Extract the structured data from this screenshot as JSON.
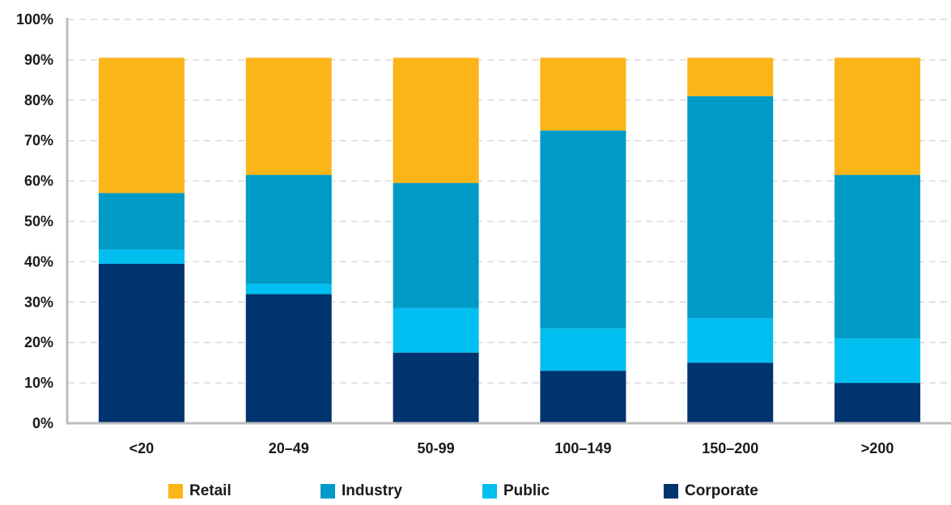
{
  "chart_data": {
    "type": "bar",
    "stacked": true,
    "categories": [
      "<20",
      "20–49",
      "50-99",
      "100–149",
      "150–200",
      ">200"
    ],
    "series": [
      {
        "name": "Corporate",
        "color": "#00346f",
        "values": [
          39.5,
          32,
          17.5,
          13,
          15,
          10
        ]
      },
      {
        "name": "Public",
        "color": "#00bff0",
        "values": [
          3.5,
          2.5,
          11,
          10.5,
          11,
          11
        ]
      },
      {
        "name": "Industry",
        "color": "#009ac6",
        "values": [
          14,
          27,
          31,
          49,
          55,
          40.5
        ]
      },
      {
        "name": "Retail",
        "color": "#fbb519",
        "values": [
          33.5,
          29,
          31,
          18,
          9.5,
          29
        ]
      }
    ],
    "legend_order": [
      "Retail",
      "Industry",
      "Public",
      "Corporate"
    ],
    "y_ticks": [
      "0%",
      "10%",
      "20%",
      "30%",
      "40%",
      "50%",
      "60%",
      "70%",
      "80%",
      "90%",
      "100%"
    ],
    "ylim": [
      0,
      100
    ],
    "grid": true,
    "legend_position": "bottom"
  }
}
